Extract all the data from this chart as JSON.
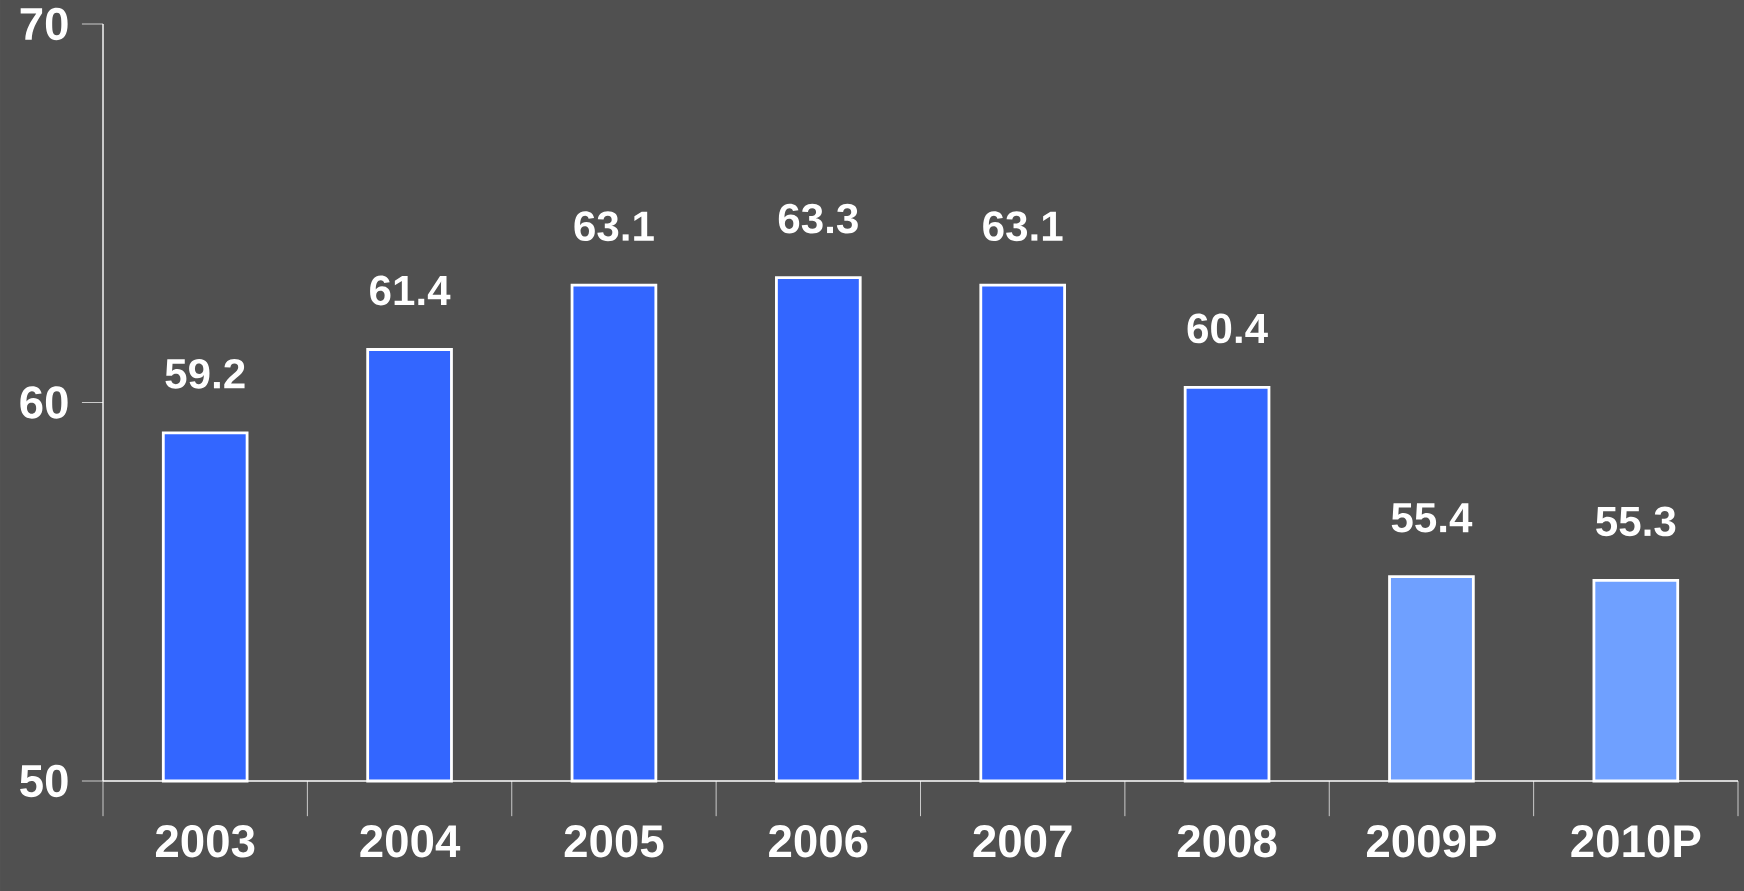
{
  "chart_data": {
    "type": "bar",
    "categories": [
      "2003",
      "2004",
      "2005",
      "2006",
      "2007",
      "2008",
      "2009P",
      "2010P"
    ],
    "values": [
      59.2,
      61.4,
      63.1,
      63.3,
      63.1,
      60.4,
      55.4,
      55.3
    ],
    "colors": [
      "#3366ff",
      "#3366ff",
      "#3366ff",
      "#3366ff",
      "#3366ff",
      "#3366ff",
      "#6fa0ff",
      "#6fa0ff"
    ],
    "ylim": [
      50,
      70
    ],
    "yticks": [
      50,
      60,
      70
    ],
    "data_labels": true
  }
}
